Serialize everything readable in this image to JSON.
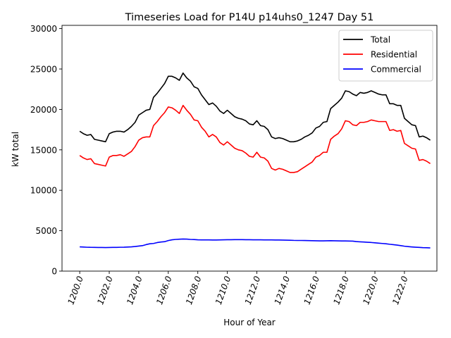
{
  "chart_data": {
    "type": "line",
    "title": "Timeseries Load for P14U p14uhs0_1247  Day 51",
    "xlabel": "Hour of Year",
    "ylabel": "kW total",
    "xlim": [
      1198.8,
      1224.2
    ],
    "ylim": [
      0,
      30400
    ],
    "x_ticks": [
      1200,
      1202,
      1204,
      1206,
      1208,
      1210,
      1212,
      1214,
      1216,
      1218,
      1220,
      1222
    ],
    "x_tick_labels": [
      "1200.0",
      "1202.0",
      "1204.0",
      "1206.0",
      "1208.0",
      "1210.0",
      "1212.0",
      "1214.0",
      "1216.0",
      "1218.0",
      "1220.0",
      "1222.0"
    ],
    "y_ticks": [
      0,
      5000,
      10000,
      15000,
      20000,
      25000,
      30000
    ],
    "y_tick_labels": [
      "0",
      "5000",
      "10000",
      "15000",
      "20000",
      "25000",
      "30000"
    ],
    "grid": false,
    "legend_position": "top-right",
    "x_start": 1200,
    "x_step": 0.25,
    "series": [
      {
        "name": "Total",
        "color": "#000000",
        "values": [
          17300,
          17000,
          16800,
          16900,
          16300,
          16200,
          16100,
          16000,
          17000,
          17200,
          17300,
          17300,
          17200,
          17500,
          17900,
          18400,
          19300,
          19600,
          19900,
          20000,
          21500,
          22000,
          22600,
          23200,
          24100,
          24100,
          23900,
          23600,
          24500,
          23900,
          23500,
          22800,
          22600,
          21800,
          21200,
          20600,
          20800,
          20400,
          19800,
          19500,
          19900,
          19500,
          19100,
          18900,
          18800,
          18600,
          18200,
          18100,
          18600,
          18000,
          17900,
          17500,
          16600,
          16400,
          16500,
          16400,
          16200,
          16000,
          16000,
          16100,
          16300,
          16600,
          16800,
          17100,
          17700,
          17900,
          18400,
          18500,
          20100,
          20500,
          20900,
          21400,
          22300,
          22200,
          21900,
          21700,
          22100,
          22000,
          22100,
          22300,
          22100,
          21900,
          21800,
          21800,
          20700,
          20700,
          20500,
          20500,
          18900,
          18500,
          18100,
          18000,
          16600,
          16700,
          16500,
          16200
        ]
      },
      {
        "name": "Residential",
        "color": "#ff0000",
        "values": [
          14300,
          14000,
          13800,
          13900,
          13300,
          13200,
          13100,
          13000,
          14100,
          14300,
          14300,
          14400,
          14200,
          14500,
          14800,
          15400,
          16200,
          16500,
          16600,
          16600,
          18000,
          18500,
          19100,
          19600,
          20300,
          20200,
          19900,
          19500,
          20500,
          19900,
          19400,
          18700,
          18600,
          17800,
          17300,
          16600,
          16900,
          16600,
          15900,
          15600,
          16000,
          15600,
          15200,
          15000,
          14900,
          14600,
          14200,
          14100,
          14700,
          14100,
          14000,
          13600,
          12700,
          12500,
          12700,
          12600,
          12400,
          12200,
          12200,
          12300,
          12600,
          12900,
          13200,
          13500,
          14100,
          14300,
          14700,
          14700,
          16300,
          16700,
          17000,
          17600,
          18600,
          18500,
          18100,
          18000,
          18400,
          18400,
          18500,
          18700,
          18600,
          18500,
          18500,
          18500,
          17400,
          17500,
          17300,
          17400,
          15800,
          15500,
          15200,
          15100,
          13700,
          13800,
          13600,
          13300
        ]
      },
      {
        "name": "Commercial",
        "color": "#0000ff",
        "values": [
          3000,
          2980,
          2950,
          2940,
          2930,
          2920,
          2920,
          2910,
          2920,
          2930,
          2930,
          2950,
          2960,
          2980,
          3000,
          3040,
          3100,
          3150,
          3280,
          3380,
          3420,
          3530,
          3600,
          3640,
          3780,
          3870,
          3920,
          3950,
          3970,
          3960,
          3920,
          3900,
          3870,
          3860,
          3860,
          3860,
          3850,
          3850,
          3860,
          3870,
          3880,
          3880,
          3890,
          3890,
          3890,
          3880,
          3880,
          3870,
          3870,
          3870,
          3860,
          3860,
          3860,
          3850,
          3850,
          3840,
          3830,
          3820,
          3800,
          3790,
          3790,
          3780,
          3770,
          3760,
          3750,
          3740,
          3740,
          3750,
          3760,
          3750,
          3740,
          3730,
          3730,
          3720,
          3710,
          3650,
          3620,
          3600,
          3570,
          3540,
          3500,
          3460,
          3420,
          3380,
          3320,
          3270,
          3220,
          3150,
          3080,
          3030,
          2990,
          2960,
          2930,
          2900,
          2890,
          2870
        ]
      }
    ]
  }
}
